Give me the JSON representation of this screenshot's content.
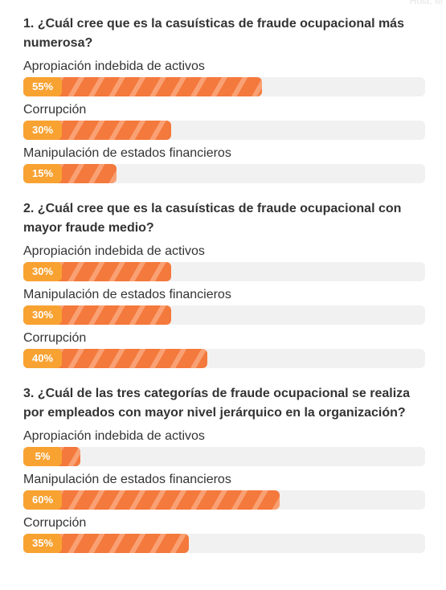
{
  "corner_text": "Hola, M",
  "chart_data": [
    {
      "type": "bar",
      "title": "1. ¿Cuál cree que es la casuísticas de fraude ocupacional más numerosa?",
      "categories": [
        "Apropiación indebida de activos",
        "Corrupción",
        "Manipulación de estados financieros"
      ],
      "values": [
        55,
        30,
        15
      ],
      "value_labels": [
        "55%",
        "30%",
        "15%"
      ],
      "color": "#f4793c",
      "xlim": [
        0,
        100
      ]
    },
    {
      "type": "bar",
      "title": "2. ¿Cuál cree que es la casuísticas de fraude ocupacional con mayor fraude medio?",
      "categories": [
        "Apropiación indebida de activos",
        "Manipulación de estados financieros",
        "Corrupción"
      ],
      "values": [
        30,
        30,
        40
      ],
      "value_labels": [
        "30%",
        "30%",
        "40%"
      ],
      "color": "#f4793c",
      "xlim": [
        0,
        100
      ]
    },
    {
      "type": "bar",
      "title": "3. ¿Cuál de las tres categorías de fraude ocupacional se realiza por empleados con mayor nivel jerárquico en la organización?",
      "categories": [
        "Apropiación indebida de activos",
        "Manipulación de estados financieros",
        "Corrupción"
      ],
      "values": [
        5,
        60,
        35
      ],
      "value_labels": [
        "5%",
        "60%",
        "35%"
      ],
      "color": "#f4793c",
      "xlim": [
        0,
        100
      ]
    }
  ]
}
